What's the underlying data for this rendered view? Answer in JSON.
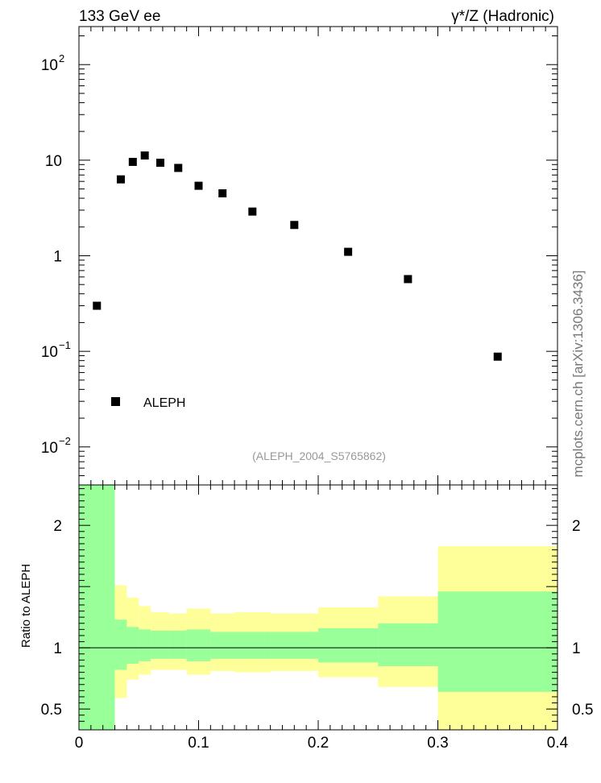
{
  "header": {
    "energy_label": "133 GeV ee",
    "process_label": "γ*/Z (Hadronic)"
  },
  "side_label": "mcplots.cern.ch [arXiv:1306.3436]",
  "analysis_label": "(ALEPH_2004_S5765862)",
  "chart_data": [
    {
      "type": "scatter",
      "panel": "main",
      "yscale": "log",
      "xlim": [
        0,
        0.4
      ],
      "ylim": [
        0.004,
        250
      ],
      "yticks": [
        {
          "value": 0.01,
          "base": "10",
          "exp": "−2"
        },
        {
          "value": 0.1,
          "base": "10",
          "exp": "−1"
        },
        {
          "value": 1,
          "base": "1",
          "exp": ""
        },
        {
          "value": 10,
          "base": "10",
          "exp": ""
        },
        {
          "value": 100,
          "base": "10",
          "exp": "2"
        }
      ],
      "legend": {
        "label": "ALEPH",
        "position": "bottom-left"
      },
      "series": [
        {
          "name": "ALEPH",
          "marker": "square",
          "color": "#000000",
          "points": [
            {
              "x": 0.015,
              "y": 0.3
            },
            {
              "x": 0.035,
              "y": 6.3
            },
            {
              "x": 0.045,
              "y": 9.6
            },
            {
              "x": 0.055,
              "y": 11.2
            },
            {
              "x": 0.068,
              "y": 9.4
            },
            {
              "x": 0.083,
              "y": 8.3
            },
            {
              "x": 0.1,
              "y": 5.4
            },
            {
              "x": 0.12,
              "y": 4.5
            },
            {
              "x": 0.145,
              "y": 2.9
            },
            {
              "x": 0.18,
              "y": 2.1
            },
            {
              "x": 0.225,
              "y": 1.1
            },
            {
              "x": 0.275,
              "y": 0.57
            },
            {
              "x": 0.35,
              "y": 0.088
            }
          ]
        }
      ]
    },
    {
      "type": "area",
      "panel": "ratio",
      "ylabel": "Ratio to ALEPH",
      "xlim": [
        0,
        0.4
      ],
      "ylim": [
        0.33,
        2.33
      ],
      "xticks": [
        "0",
        "0.1",
        "0.2",
        "0.3",
        "0.4"
      ],
      "yticks": [
        "0.5",
        "1",
        "2"
      ],
      "reference_line": 1,
      "colors": {
        "inner_band": "#99ff99",
        "outer_band": "#ffff99"
      },
      "bins": [
        {
          "x0": 0.0,
          "x1": 0.03,
          "green": [
            0.33,
            2.33
          ],
          "yellow": [
            0.33,
            2.33
          ]
        },
        {
          "x0": 0.03,
          "x1": 0.04,
          "green": [
            0.82,
            1.23
          ],
          "yellow": [
            0.59,
            1.51
          ]
        },
        {
          "x0": 0.04,
          "x1": 0.05,
          "green": [
            0.87,
            1.17
          ],
          "yellow": [
            0.74,
            1.41
          ]
        },
        {
          "x0": 0.05,
          "x1": 0.06,
          "green": [
            0.89,
            1.15
          ],
          "yellow": [
            0.78,
            1.34
          ]
        },
        {
          "x0": 0.06,
          "x1": 0.075,
          "green": [
            0.91,
            1.14
          ],
          "yellow": [
            0.82,
            1.29
          ]
        },
        {
          "x0": 0.075,
          "x1": 0.09,
          "green": [
            0.91,
            1.14
          ],
          "yellow": [
            0.82,
            1.28
          ]
        },
        {
          "x0": 0.09,
          "x1": 0.11,
          "green": [
            0.89,
            1.15
          ],
          "yellow": [
            0.78,
            1.32
          ]
        },
        {
          "x0": 0.11,
          "x1": 0.13,
          "green": [
            0.91,
            1.13
          ],
          "yellow": [
            0.81,
            1.28
          ]
        },
        {
          "x0": 0.13,
          "x1": 0.16,
          "green": [
            0.91,
            1.13
          ],
          "yellow": [
            0.8,
            1.29
          ]
        },
        {
          "x0": 0.16,
          "x1": 0.2,
          "green": [
            0.91,
            1.13
          ],
          "yellow": [
            0.81,
            1.28
          ]
        },
        {
          "x0": 0.2,
          "x1": 0.25,
          "green": [
            0.88,
            1.16
          ],
          "yellow": [
            0.76,
            1.33
          ]
        },
        {
          "x0": 0.25,
          "x1": 0.3,
          "green": [
            0.85,
            1.2
          ],
          "yellow": [
            0.68,
            1.42
          ]
        },
        {
          "x0": 0.3,
          "x1": 0.4,
          "green": [
            0.64,
            1.46
          ],
          "yellow": [
            0.33,
            1.83
          ]
        }
      ]
    }
  ]
}
